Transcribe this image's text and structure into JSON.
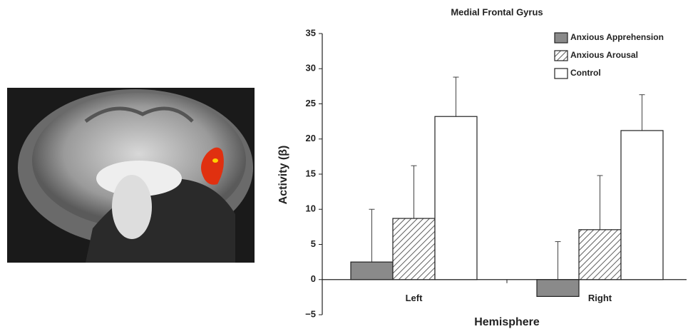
{
  "chart_data": {
    "type": "bar",
    "title": "Medial Frontal Gyrus",
    "xlabel": "Hemisphere",
    "ylabel": "Activity (β)",
    "categories": [
      "Left",
      "Right"
    ],
    "series": [
      {
        "name": "Anxious Apprehension",
        "color": "#8a8a8a",
        "hatch": false,
        "values": [
          2.5,
          -2.4
        ],
        "errors": [
          7.5,
          7.8
        ]
      },
      {
        "name": "Anxious Arousal",
        "color": "#ffffff",
        "hatch": true,
        "values": [
          8.7,
          7.1
        ],
        "errors": [
          7.5,
          7.7
        ]
      },
      {
        "name": "Control",
        "color": "#ffffff",
        "hatch": false,
        "values": [
          23.2,
          21.2
        ],
        "errors": [
          5.6,
          5.1
        ]
      }
    ],
    "ylim": [
      -5,
      35
    ],
    "yticks": [
      {
        "value": -5,
        "label": "−5"
      },
      0,
      5,
      10,
      15,
      20,
      25,
      30,
      35
    ],
    "legend": "upper right"
  }
}
